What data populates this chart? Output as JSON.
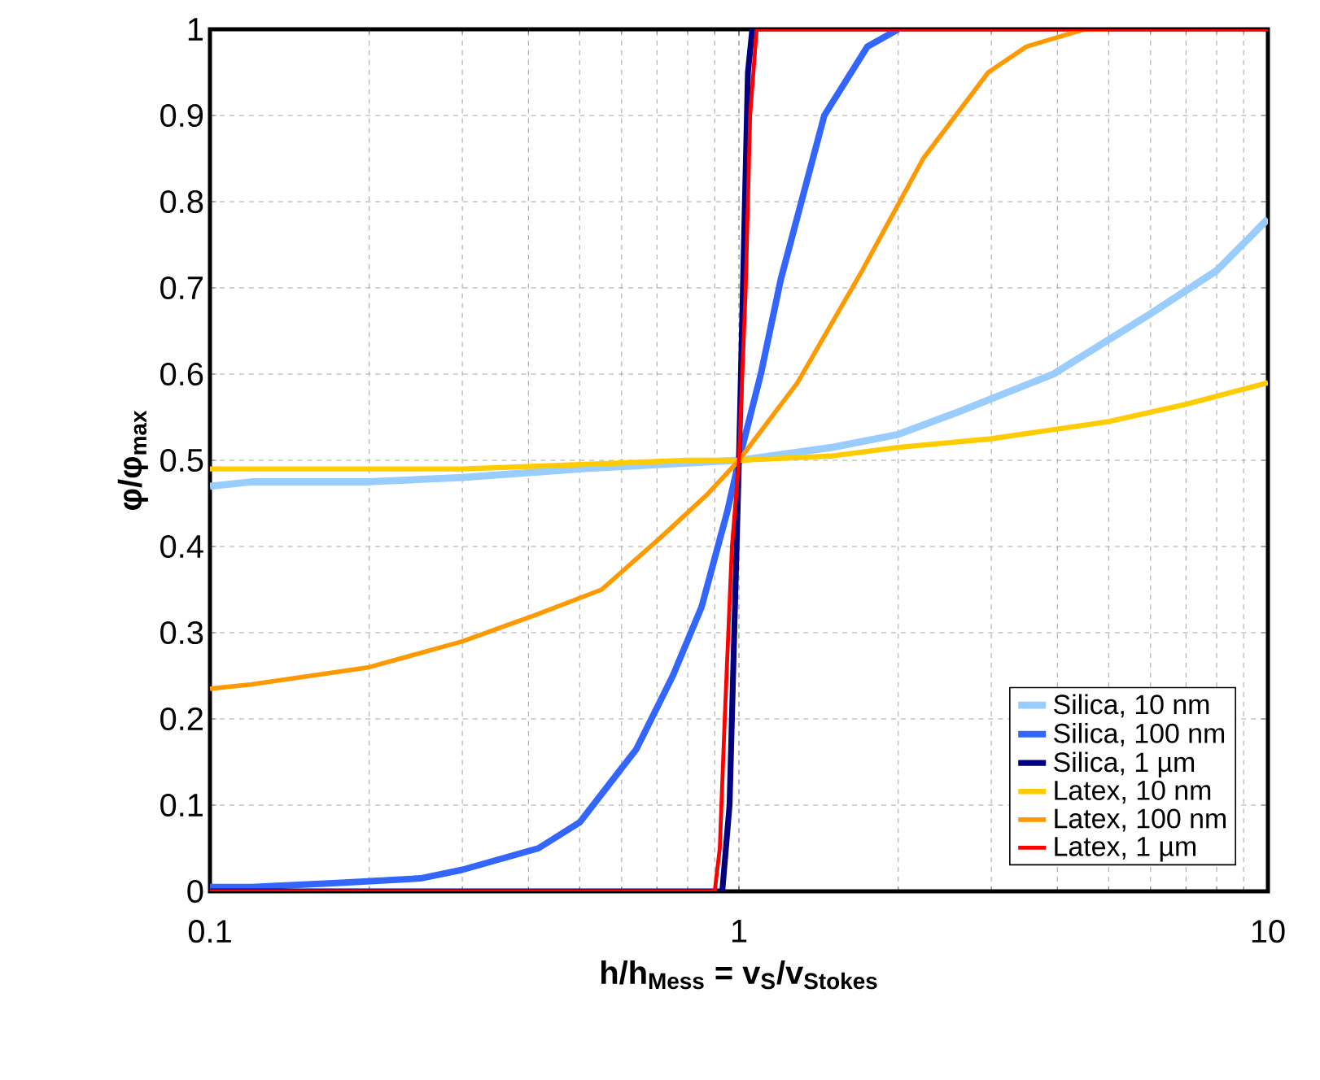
{
  "chart_data": {
    "type": "line",
    "xlabel": "h/h$_{Mess}$ = v$_{S}$/v$_{Stokes}$",
    "ylabel": "φ/φ$_{max}$",
    "log": "x",
    "xlim": [
      0.1,
      10
    ],
    "ylim": [
      0,
      1
    ],
    "xticks": [
      0.1,
      1,
      10
    ],
    "yticks": [
      0,
      0.1,
      0.2,
      0.3,
      0.4,
      0.5,
      0.6,
      0.7,
      0.8,
      0.9,
      1
    ],
    "grid": true,
    "legend": "bottom right",
    "line_style": "solid",
    "series": [
      {
        "name": "Silica, 10 nm",
        "color": "#99ccff",
        "x": [
          0.1,
          0.12,
          0.2,
          0.3,
          0.5,
          0.7,
          1,
          1.5,
          2,
          2.62,
          3.93,
          6,
          8,
          10
        ],
        "values": [
          0.47,
          0.475,
          0.475,
          0.48,
          0.49,
          0.495,
          0.5,
          0.515,
          0.53,
          0.557,
          0.6,
          0.67,
          0.72,
          0.78
        ]
      },
      {
        "name": "Silica, 100 nm",
        "color": "#3366ff",
        "x": [
          0.1,
          0.12,
          0.177,
          0.25,
          0.3,
          0.418,
          0.5,
          0.64,
          0.75,
          0.85,
          0.95,
          1,
          1.1,
          1.2,
          1.45,
          1.75,
          2
        ],
        "values": [
          0.005,
          0.005,
          0.01,
          0.015,
          0.025,
          0.05,
          0.08,
          0.165,
          0.25,
          0.33,
          0.44,
          0.5,
          0.6,
          0.71,
          0.9,
          0.98,
          1
        ]
      },
      {
        "name": "Silica, 1 µm",
        "color": "#000080",
        "x": [
          0.1,
          0.93,
          0.96,
          1,
          1.04,
          1.06
        ],
        "values": [
          0,
          0,
          0.1,
          0.5,
          0.95,
          1
        ]
      },
      {
        "name": "Latex, 10 nm",
        "color": "#ffcc00",
        "x": [
          0.1,
          0.3,
          0.5,
          0.8,
          1,
          1.5,
          2,
          3,
          5,
          7,
          10
        ],
        "values": [
          0.49,
          0.49,
          0.495,
          0.5,
          0.5,
          0.505,
          0.515,
          0.525,
          0.545,
          0.565,
          0.59
        ]
      },
      {
        "name": "Latex, 100 nm",
        "color": "#ff9900",
        "x": [
          0.1,
          0.12,
          0.2,
          0.3,
          0.41,
          0.55,
          0.71,
          0.87,
          1,
          1.29,
          1.71,
          2.23,
          2.96,
          3.5,
          4.5,
          5
        ],
        "values": [
          0.235,
          0.24,
          0.26,
          0.29,
          0.32,
          0.35,
          0.41,
          0.46,
          0.5,
          0.59,
          0.72,
          0.85,
          0.95,
          0.98,
          1,
          1
        ]
      },
      {
        "name": "Latex, 1 µm",
        "color": "#ff0000",
        "x": [
          0.1,
          0.9,
          0.92,
          0.94,
          0.97,
          1,
          1.03,
          1.05,
          1.08,
          10
        ],
        "values": [
          0,
          0,
          0.05,
          0.2,
          0.4,
          0.5,
          0.7,
          0.9,
          1,
          1
        ]
      }
    ]
  }
}
